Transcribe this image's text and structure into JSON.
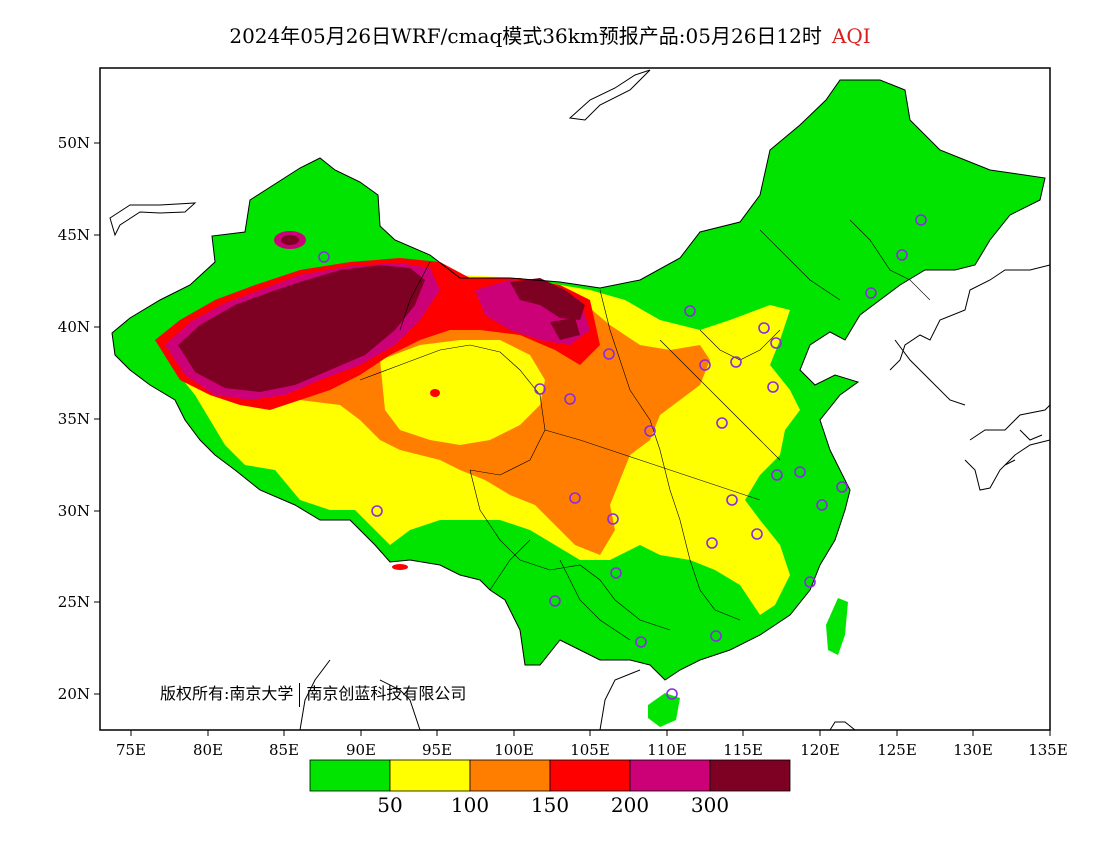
{
  "title": {
    "text": "2024年05月26日WRF/cmaq模式36km预报产品:05月26日12时",
    "variable": "AQI",
    "variable_color": "#d81e1e"
  },
  "map": {
    "lon_ticks": [
      "75E",
      "80E",
      "85E",
      "90E",
      "95E",
      "100E",
      "105E",
      "110E",
      "115E",
      "120E",
      "125E",
      "130E",
      "135E"
    ],
    "lat_ticks": [
      "50N",
      "45N",
      "40N",
      "35N",
      "30N",
      "25N",
      "20N"
    ],
    "lon_range": [
      73,
      135
    ],
    "lat_range": [
      18,
      54
    ]
  },
  "legend": {
    "colors": [
      "#00e400",
      "#ffff00",
      "#ff7e00",
      "#ff0000",
      "#cc0077",
      "#7e0023"
    ],
    "labels": [
      "50",
      "100",
      "150",
      "200",
      "300"
    ]
  },
  "copyright": {
    "holder": "版权所有:南京大学",
    "company": "南京创蓝科技有限公司"
  },
  "stations": {
    "marker_color": "#8a2be2"
  }
}
